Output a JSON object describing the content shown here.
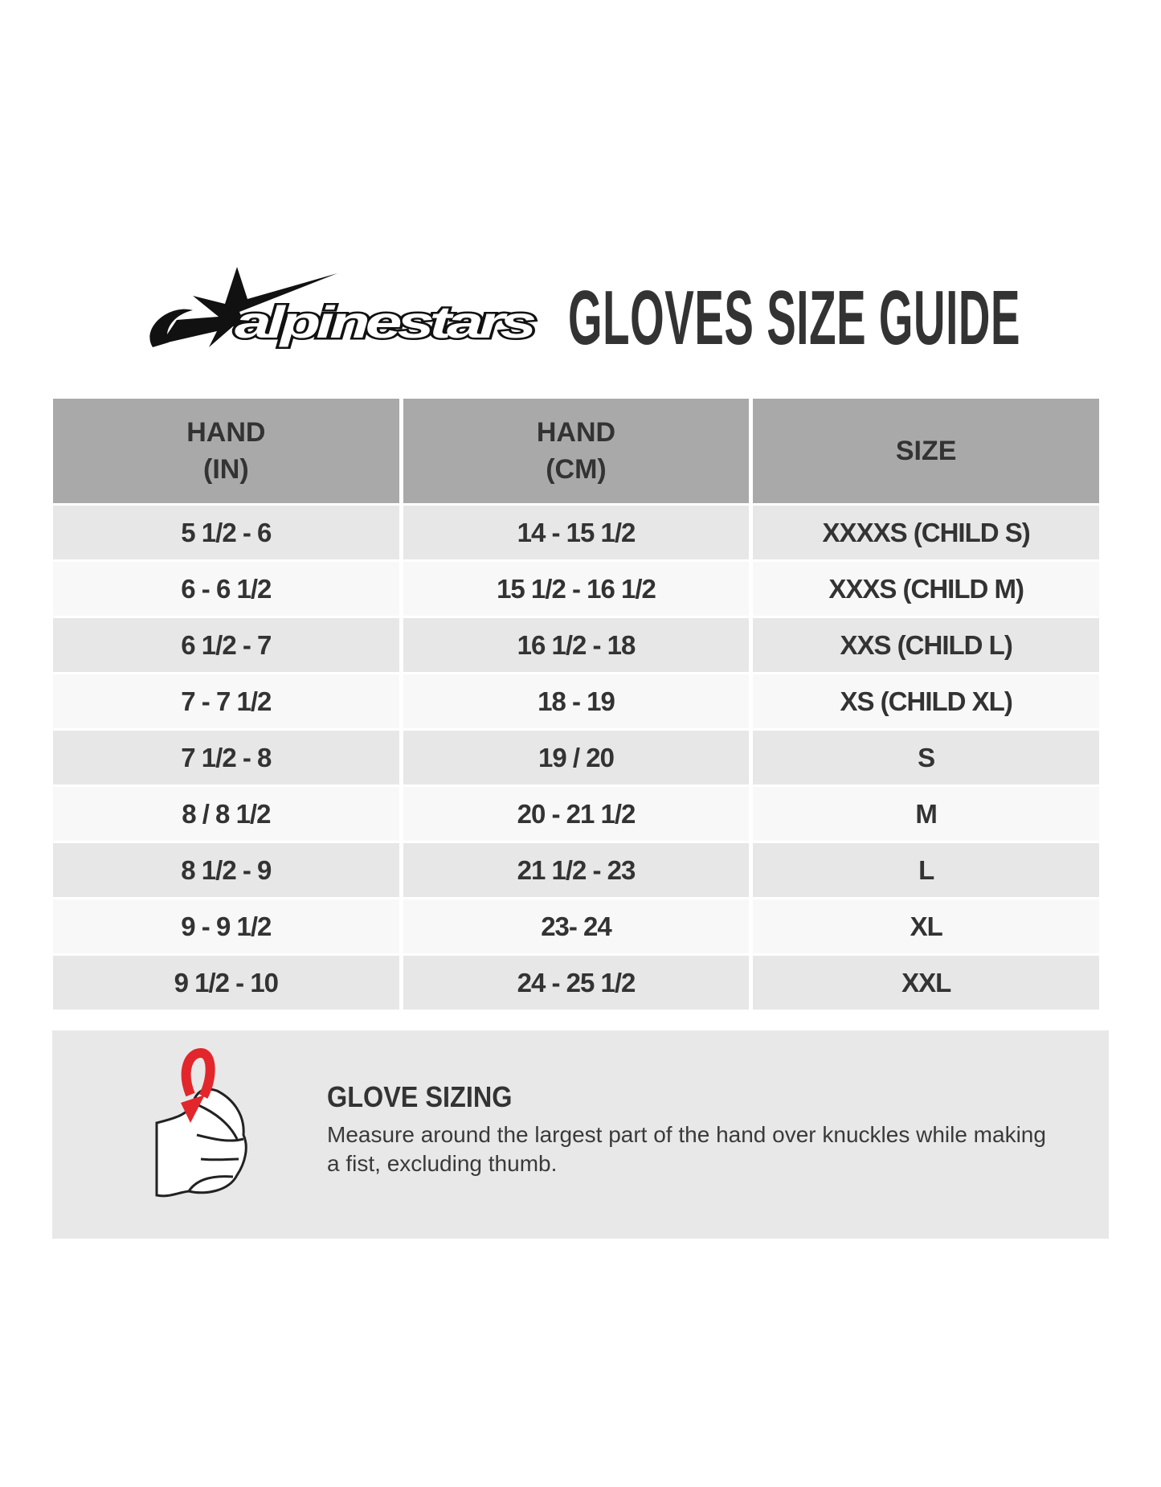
{
  "brand": {
    "logo_text": "alpinestars"
  },
  "title": "GLOVES SIZE GUIDE",
  "table": {
    "headers": [
      {
        "line1": "HAND",
        "line2": "(IN)"
      },
      {
        "line1": "HAND",
        "line2": "(CM)"
      },
      {
        "line1": "SIZE",
        "line2": ""
      }
    ],
    "rows": [
      [
        "5 1/2 - 6",
        "14 - 15 1/2",
        "XXXXS (CHILD S)"
      ],
      [
        "6 - 6 1/2",
        "15 1/2 - 16 1/2",
        "XXXS (CHILD M)"
      ],
      [
        "6 1/2 - 7",
        "16 1/2 - 18",
        "XXS (CHILD L)"
      ],
      [
        "7 - 7 1/2",
        "18 - 19",
        "XS (CHILD XL)"
      ],
      [
        "7 1/2 - 8",
        "19 / 20",
        "S"
      ],
      [
        "8 / 8 1/2",
        "20 - 21 1/2",
        "M"
      ],
      [
        "8 1/2 - 9",
        "21 1/2 - 23",
        "L"
      ],
      [
        "9 - 9 1/2",
        "23- 24",
        "XL"
      ],
      [
        "9 1/2 - 10",
        "24 - 25 1/2",
        "XXL"
      ]
    ]
  },
  "note": {
    "icon": "hand-fist-measure-icon",
    "title": "GLOVE SIZING",
    "text": "Measure around the largest part of the hand over knuckles while making a fist, excluding thumb."
  },
  "colors": {
    "header_bg": "#a9a9a9",
    "row_odd": "#e7e7e7",
    "row_even": "#f8f8f8",
    "arrow": "#e3262b",
    "text": "#333333"
  }
}
